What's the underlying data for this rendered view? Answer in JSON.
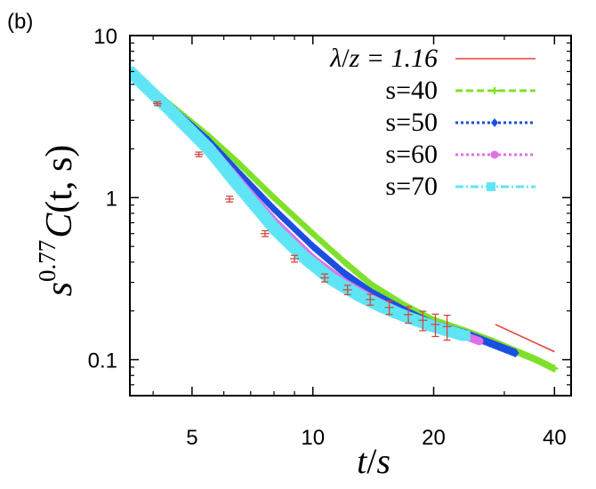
{
  "panel_label": "(b)",
  "chart_data": {
    "type": "scatter",
    "scale": {
      "x": "log",
      "y": "log"
    },
    "xlim": [
      3.5,
      44
    ],
    "ylim": [
      0.06,
      10
    ],
    "xticks": [
      {
        "value": 5,
        "label": "5"
      },
      {
        "value": 10,
        "label": "10"
      },
      {
        "value": 20,
        "label": "20"
      },
      {
        "value": 40,
        "label": "40"
      }
    ],
    "yticks": [
      {
        "value": 10,
        "label": "10"
      },
      {
        "value": 1,
        "label": "1"
      },
      {
        "value": 0.1,
        "label": "0.1"
      }
    ],
    "xlabel": {
      "var_t": "t",
      "slash": "/",
      "var_s": "s"
    },
    "ylabel": {
      "s": "s",
      "exp": "0.77",
      "c": "C",
      "args": "(t, s)"
    },
    "legend_position": "top-right",
    "series": [
      {
        "name": "λ/z = 1.16",
        "legend_lambda": "λ",
        "legend_slash": "/",
        "legend_rest": "z = 1.16",
        "color": "#e8433a",
        "style": "line",
        "x": [
          28.5,
          40
        ],
        "y": [
          0.165,
          0.112
        ]
      },
      {
        "name": "s=40",
        "legend": "s=40",
        "color": "#7fe02a",
        "style": "dashes",
        "marker": "plus",
        "x": [
          3.5,
          4.5,
          5.5,
          6.5,
          8,
          10,
          12,
          14,
          17,
          20,
          24,
          28,
          32,
          36,
          40
        ],
        "y": [
          6.0,
          3.6,
          2.4,
          1.65,
          1.0,
          0.6,
          0.4,
          0.29,
          0.215,
          0.175,
          0.15,
          0.13,
          0.113,
          0.1,
          0.088
        ]
      },
      {
        "name": "s=50",
        "legend": "s=50",
        "color": "#1b4fe0",
        "style": "dots",
        "marker": "diamond",
        "x": [
          3.5,
          4.5,
          5.5,
          6.5,
          8,
          10,
          12,
          14,
          17,
          20,
          24,
          28,
          32
        ],
        "y": [
          6.0,
          3.5,
          2.25,
          1.45,
          0.85,
          0.5,
          0.34,
          0.26,
          0.2,
          0.165,
          0.145,
          0.125,
          0.11
        ]
      },
      {
        "name": "s=60",
        "legend": "s=60",
        "color": "#e070e8",
        "style": "dots",
        "marker": "circle",
        "x": [
          3.5,
          4.5,
          5.5,
          6.5,
          8,
          10,
          12,
          14,
          17,
          20,
          24,
          26
        ],
        "y": [
          6.0,
          3.4,
          2.1,
          1.3,
          0.72,
          0.42,
          0.3,
          0.24,
          0.19,
          0.16,
          0.14,
          0.13
        ]
      },
      {
        "name": "s=70",
        "legend": "s=70",
        "color": "#5fe5f5",
        "style": "dashdot",
        "marker": "square",
        "x": [
          3.5,
          4.5,
          5.5,
          6.5,
          8,
          9.5,
          11,
          13,
          15,
          17,
          20,
          24
        ],
        "y": [
          6.0,
          3.3,
          2.0,
          1.2,
          0.65,
          0.43,
          0.32,
          0.25,
          0.21,
          0.185,
          0.16,
          0.14
        ]
      },
      {
        "name": "reference data with error bars",
        "color": "#d04a3a",
        "style": "errorbar",
        "x": [
          4.1,
          5.2,
          6.2,
          7.6,
          9.0,
          10.7,
          12.2,
          13.9,
          15.5,
          17.3,
          18.8,
          20.2,
          21.6
        ],
        "y": [
          3.8,
          1.85,
          0.98,
          0.6,
          0.42,
          0.32,
          0.27,
          0.235,
          0.21,
          0.19,
          0.175,
          0.165,
          0.16
        ],
        "err": [
          0.1,
          0.06,
          0.04,
          0.025,
          0.02,
          0.018,
          0.018,
          0.018,
          0.02,
          0.022,
          0.024,
          0.026,
          0.028
        ]
      }
    ]
  }
}
